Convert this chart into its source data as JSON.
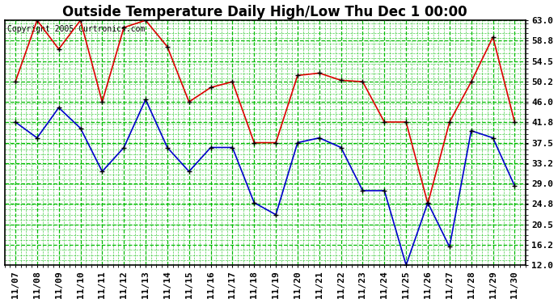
{
  "title": "Outside Temperature Daily High/Low Thu Dec 1 00:00",
  "copyright": "Copyright 2005 Curtronics.com",
  "x_labels": [
    "11/07",
    "11/08",
    "11/09",
    "11/10",
    "11/11",
    "11/12",
    "11/13",
    "11/14",
    "11/15",
    "11/16",
    "11/17",
    "11/18",
    "11/19",
    "11/20",
    "11/21",
    "11/22",
    "11/23",
    "11/24",
    "11/25",
    "11/26",
    "11/27",
    "11/28",
    "11/29",
    "11/30"
  ],
  "high_temps": [
    50.2,
    63.0,
    57.0,
    63.0,
    46.0,
    61.5,
    63.0,
    57.5,
    46.0,
    49.0,
    50.2,
    37.5,
    37.5,
    51.5,
    52.0,
    50.5,
    50.2,
    41.8,
    41.8,
    24.8,
    41.8,
    50.2,
    59.5,
    41.8
  ],
  "low_temps": [
    41.8,
    38.5,
    44.8,
    40.5,
    31.5,
    36.5,
    46.5,
    36.5,
    31.5,
    36.5,
    36.5,
    25.0,
    22.5,
    37.5,
    38.5,
    36.5,
    27.5,
    27.5,
    12.0,
    25.0,
    15.8,
    40.0,
    38.5,
    28.5
  ],
  "high_color": "#dd0000",
  "low_color": "#0000cc",
  "bg_color": "#ffffff",
  "plot_bg_color": "#ffffff",
  "grid_color": "#00bb00",
  "y_min": 12.0,
  "y_max": 63.0,
  "y_ticks": [
    12.0,
    16.2,
    20.5,
    24.8,
    29.0,
    33.2,
    37.5,
    41.8,
    46.0,
    50.2,
    54.5,
    58.8,
    63.0
  ],
  "title_fontsize": 12,
  "tick_fontsize": 8,
  "copyright_fontsize": 7
}
